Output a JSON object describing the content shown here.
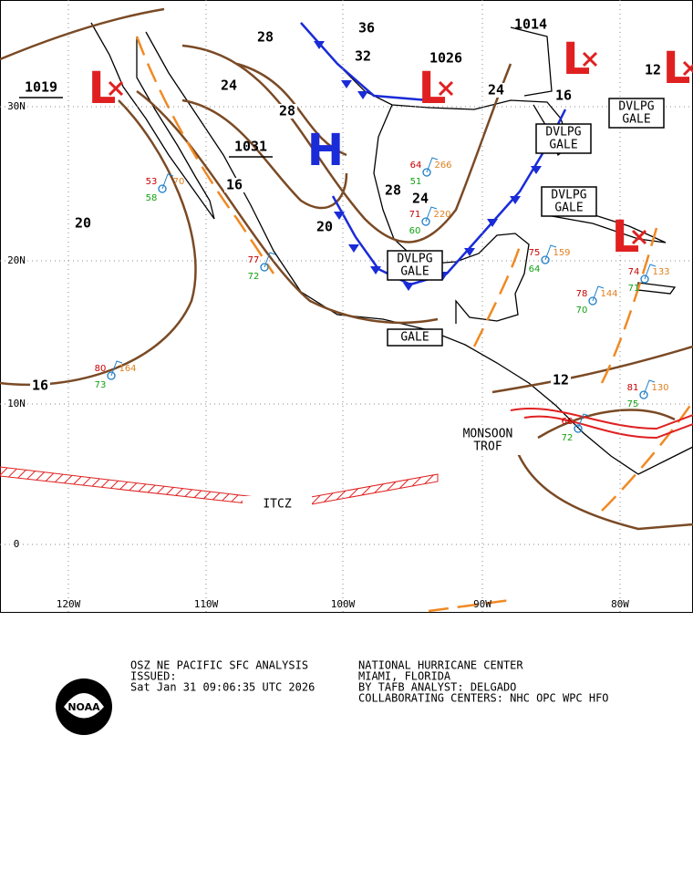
{
  "map": {
    "lat_labels": [
      "30N",
      "20N",
      "10N",
      "0"
    ],
    "lon_labels": [
      "120W",
      "110W",
      "100W",
      "90W",
      "80W"
    ],
    "high_centers": [
      "H"
    ],
    "low_centers": [
      "L",
      "L",
      "L",
      "L",
      "L"
    ],
    "pressure_labels": [
      "1019",
      "1031",
      "1026",
      "1014"
    ],
    "isobar_labels": [
      "28",
      "24",
      "28",
      "16",
      "20",
      "20",
      "28",
      "24",
      "24",
      "32",
      "36",
      "16",
      "12",
      "12",
      "16"
    ],
    "feature_labels": [
      [
        "DVLPG",
        "GALE"
      ],
      [
        "DVLPG",
        "GALE"
      ],
      [
        "DVLPG",
        "GALE"
      ],
      [
        "DVLPG",
        "GALE"
      ],
      [
        "GALE"
      ],
      [
        "MONSOON",
        "TROF"
      ],
      [
        "ITCZ"
      ]
    ],
    "stations": [
      {
        "temp": "77",
        "dew": "72"
      },
      {
        "temp": "80",
        "dew": "73",
        "pressure": "164"
      },
      {
        "temp": "53",
        "dew": "58",
        "pressure": "70"
      },
      {
        "temp": "75",
        "dew": "64",
        "pressure": "159"
      },
      {
        "temp": "78",
        "dew": "70",
        "pressure": "144"
      },
      {
        "temp": "74",
        "dew": "71",
        "pressure": "133"
      },
      {
        "temp": "81",
        "dew": "75",
        "pressure": "130"
      },
      {
        "temp": "68",
        "dew": "72"
      },
      {
        "temp": "71",
        "dew": "60",
        "pressure": "220"
      },
      {
        "temp": "64",
        "dew": "51",
        "pressure": "266"
      }
    ]
  },
  "footer": {
    "logo": "NOAA",
    "left_lines": [
      "OSZ NE PACIFIC SFC ANALYSIS",
      "ISSUED:",
      " Sat Jan 31 09:06:35 UTC 2026"
    ],
    "right_lines": [
      "NATIONAL HURRICANE CENTER",
      "MIAMI, FLORIDA",
      "BY TAFB ANALYST: DELGADO",
      "COLLABORATING CENTERS: NHC OPC WPC HFO"
    ]
  }
}
